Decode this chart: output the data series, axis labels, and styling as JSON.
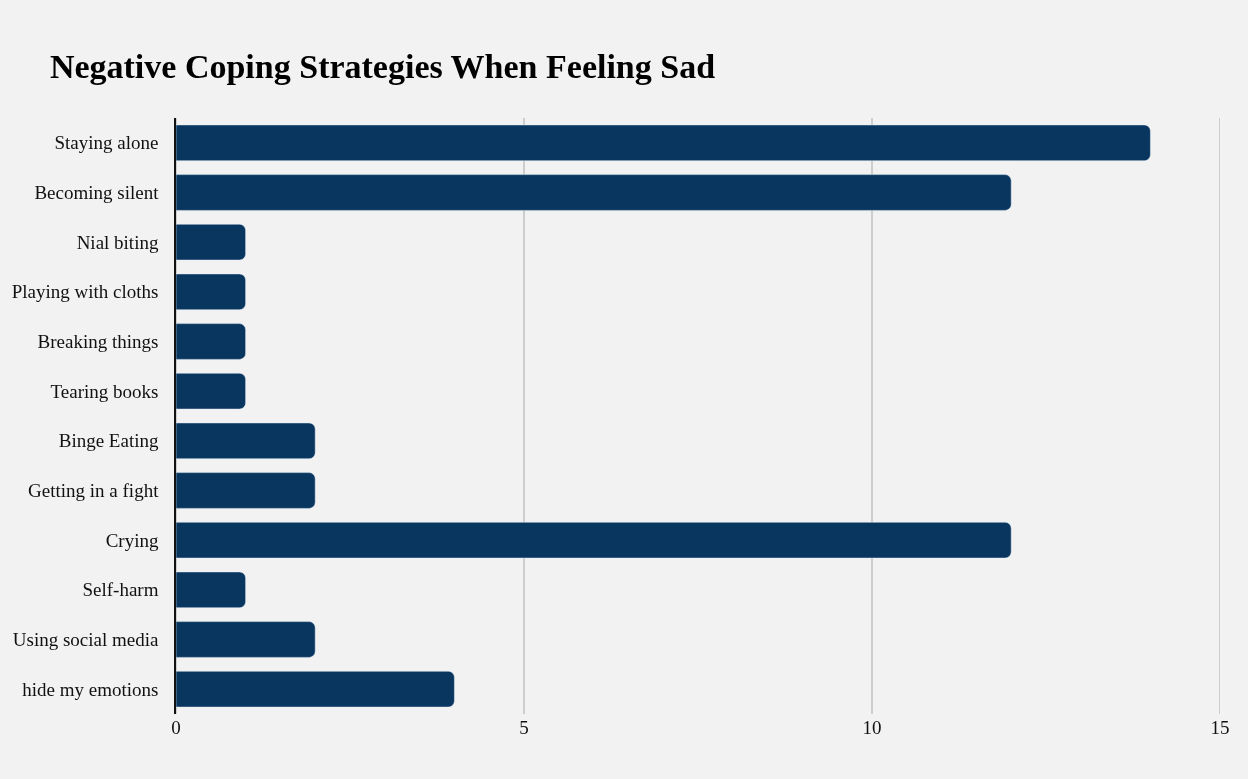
{
  "chart_data": {
    "type": "bar",
    "orientation": "horizontal",
    "title": "Negative Coping Strategies When Feeling Sad",
    "categories": [
      "Staying alone",
      "Becoming silent",
      "Nial biting",
      "Playing with cloths",
      "Breaking things",
      "Tearing books",
      "Binge Eating",
      "Getting in a fight",
      "Crying",
      "Self-harm",
      "Using social media",
      "hide my emotions"
    ],
    "values": [
      14,
      12,
      1,
      1,
      1,
      1,
      2,
      2,
      12,
      1,
      2,
      4
    ],
    "color": "#08365f",
    "xlim": [
      0,
      15
    ],
    "xticks": [
      0,
      5,
      10,
      15
    ],
    "grid": "x"
  }
}
